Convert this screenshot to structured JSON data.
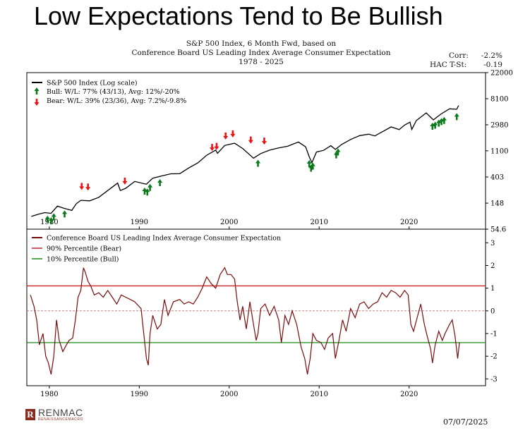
{
  "headline": "Low Expectations Tend to Be Bullish",
  "subtitle": {
    "line1": "S&P 500 Index, 6 Month Fwd, based on",
    "line2": "Conference Board US Leading Index Average Consumer Expectation",
    "line3": "1978 - 2025"
  },
  "stats": {
    "corr_label": "Corr:",
    "corr_value": "-2.2%",
    "hac_label": "HAC T-St:",
    "hac_value": "-0.19"
  },
  "date": "07/07/2025",
  "logo": {
    "name": "RENMAC",
    "sub": "RENAISSANCEMACRO",
    "mark": "R"
  },
  "colors": {
    "spx": "#000000",
    "bull": "#0a7a1a",
    "bear": "#ee1111",
    "expect": "#7a0c0c",
    "p90": "#cc2222",
    "p10": "#1a8a1a"
  },
  "chart_data": [
    {
      "type": "line",
      "log_scale": true,
      "xlim": [
        1977.5,
        2028.5
      ],
      "ylim": [
        54.6,
        22000
      ],
      "x_ticks": [
        "1980",
        "1990",
        "2000",
        "2010",
        "2020"
      ],
      "x_tick_values": [
        1980,
        1990,
        2000,
        2010,
        2020
      ],
      "y_ticks": [
        "54.6",
        "148",
        "403",
        "1100",
        "2980",
        "8100",
        "22000"
      ],
      "y_tick_values": [
        54.6,
        148,
        403,
        1100,
        2980,
        8100,
        22000
      ],
      "legend": {
        "spx": "S&P 500 Index (Log scale)",
        "bull": "Bull:  W/L: 77% (43/13), Avg: 12%/-20%",
        "bear": "Bear:  W/L: 39% (23/36), Avg: 7.2%/-9.8%"
      },
      "series": [
        {
          "name": "S&P 500 Index (Log scale)",
          "points": [
            [
              1978.0,
              89
            ],
            [
              1978.8,
              97
            ],
            [
              1979.5,
              103
            ],
            [
              1980.2,
              100
            ],
            [
              1980.9,
              132
            ],
            [
              1981.6,
              122
            ],
            [
              1982.5,
              112
            ],
            [
              1983.0,
              145
            ],
            [
              1983.5,
              165
            ],
            [
              1984.5,
              162
            ],
            [
              1985.5,
              185
            ],
            [
              1986.5,
              240
            ],
            [
              1987.6,
              320
            ],
            [
              1987.9,
              240
            ],
            [
              1988.5,
              262
            ],
            [
              1989.5,
              340
            ],
            [
              1990.6,
              310
            ],
            [
              1990.8,
              306
            ],
            [
              1991.5,
              385
            ],
            [
              1992.5,
              420
            ],
            [
              1993.5,
              455
            ],
            [
              1994.5,
              458
            ],
            [
              1995.5,
              570
            ],
            [
              1996.5,
              690
            ],
            [
              1997.5,
              930
            ],
            [
              1998.5,
              1130
            ],
            [
              1998.7,
              1000
            ],
            [
              1999.5,
              1350
            ],
            [
              2000.6,
              1470
            ],
            [
              2001.5,
              1200
            ],
            [
              2002.7,
              830
            ],
            [
              2003.5,
              990
            ],
            [
              2004.5,
              1130
            ],
            [
              2005.5,
              1230
            ],
            [
              2006.5,
              1310
            ],
            [
              2007.7,
              1540
            ],
            [
              2008.5,
              1280
            ],
            [
              2008.9,
              870
            ],
            [
              2009.2,
              700
            ],
            [
              2009.7,
              1050
            ],
            [
              2010.5,
              1120
            ],
            [
              2011.3,
              1340
            ],
            [
              2011.8,
              1160
            ],
            [
              2012.5,
              1400
            ],
            [
              2013.5,
              1700
            ],
            [
              2014.5,
              1970
            ],
            [
              2015.5,
              2080
            ],
            [
              2016.2,
              1950
            ],
            [
              2017.0,
              2270
            ],
            [
              2018.0,
              2750
            ],
            [
              2018.9,
              2480
            ],
            [
              2019.5,
              2950
            ],
            [
              2020.1,
              3300
            ],
            [
              2020.3,
              2500
            ],
            [
              2020.8,
              3500
            ],
            [
              2021.9,
              4700
            ],
            [
              2022.7,
              3600
            ],
            [
              2023.5,
              4450
            ],
            [
              2024.5,
              5500
            ],
            [
              2025.3,
              5400
            ],
            [
              2025.5,
              6250
            ]
          ]
        },
        {
          "name": "Bull",
          "points": [
            [
              1979.8,
              102
            ],
            [
              1980.2,
              96
            ],
            [
              1980.5,
              112
            ],
            [
              1981.7,
              125
            ],
            [
              1990.6,
              300
            ],
            [
              1990.9,
              290
            ],
            [
              1991.2,
              345
            ],
            [
              1992.3,
              415
            ],
            [
              2003.2,
              870
            ],
            [
              2008.9,
              860
            ],
            [
              2009.1,
              720
            ],
            [
              2009.3,
              780
            ],
            [
              2011.9,
              1200
            ],
            [
              2012.1,
              1340
            ],
            [
              2022.6,
              3600
            ],
            [
              2022.9,
              3750
            ],
            [
              2023.3,
              4050
            ],
            [
              2023.6,
              4300
            ],
            [
              2023.9,
              4500
            ],
            [
              2025.3,
              5200
            ]
          ]
        },
        {
          "name": "Bear",
          "points": [
            [
              1983.6,
              220
            ],
            [
              1984.3,
              215
            ],
            [
              1988.4,
              270
            ],
            [
              1998.1,
              980
            ],
            [
              1998.6,
              1020
            ],
            [
              1999.6,
              1520
            ],
            [
              2000.4,
              1650
            ],
            [
              2002.4,
              1300
            ],
            [
              2003.9,
              1250
            ]
          ]
        }
      ]
    },
    {
      "type": "line",
      "xlim": [
        1977.5,
        2028.5
      ],
      "ylim": [
        -3.3,
        3.6
      ],
      "x_ticks": [
        "1980",
        "1990",
        "2000",
        "2010",
        "2020"
      ],
      "x_tick_values": [
        1980,
        1990,
        2000,
        2010,
        2020
      ],
      "y_ticks": [
        "-3",
        "-2",
        "-1",
        "0",
        "1",
        "2",
        "3"
      ],
      "y_tick_values": [
        -3,
        -2,
        -1,
        0,
        1,
        2,
        3
      ],
      "legend": {
        "expect": "Conference Board US Leading Index Average Consumer Expectation",
        "p90": "90% Percentile (Bear)",
        "p10": "10% Percentile (Bull)"
      },
      "percentile_90": 1.1,
      "percentile_10": -1.4,
      "zero_line": 0,
      "series": [
        {
          "name": "Conference Board US Leading Index Average Consumer Expectation",
          "points": [
            [
              1977.9,
              0.7
            ],
            [
              1978.3,
              0.2
            ],
            [
              1978.6,
              -0.4
            ],
            [
              1978.9,
              -1.5
            ],
            [
              1979.3,
              -1.0
            ],
            [
              1979.6,
              -2.0
            ],
            [
              1979.9,
              -2.3
            ],
            [
              1980.2,
              -2.8
            ],
            [
              1980.5,
              -2.0
            ],
            [
              1980.8,
              -0.4
            ],
            [
              1981.1,
              -1.3
            ],
            [
              1981.5,
              -1.8
            ],
            [
              1981.9,
              -1.5
            ],
            [
              1982.2,
              -1.3
            ],
            [
              1982.6,
              -1.2
            ],
            [
              1982.9,
              -0.4
            ],
            [
              1983.2,
              0.6
            ],
            [
              1983.5,
              0.9
            ],
            [
              1983.8,
              1.9
            ],
            [
              1984.0,
              1.7
            ],
            [
              1984.3,
              1.3
            ],
            [
              1984.6,
              1.1
            ],
            [
              1985.0,
              0.7
            ],
            [
              1985.5,
              0.8
            ],
            [
              1986.0,
              0.6
            ],
            [
              1986.5,
              0.9
            ],
            [
              1987.0,
              0.6
            ],
            [
              1987.5,
              0.3
            ],
            [
              1988.0,
              0.7
            ],
            [
              1988.5,
              0.6
            ],
            [
              1989.0,
              0.5
            ],
            [
              1989.5,
              0.4
            ],
            [
              1990.2,
              0.1
            ],
            [
              1990.5,
              -1.0
            ],
            [
              1990.8,
              -2.1
            ],
            [
              1991.0,
              -2.4
            ],
            [
              1991.2,
              -1.0
            ],
            [
              1991.5,
              -0.2
            ],
            [
              1992.0,
              -0.8
            ],
            [
              1992.4,
              -0.6
            ],
            [
              1992.8,
              0.5
            ],
            [
              1993.2,
              -0.2
            ],
            [
              1993.8,
              0.4
            ],
            [
              1994.5,
              0.5
            ],
            [
              1995.0,
              0.3
            ],
            [
              1995.5,
              0.4
            ],
            [
              1996.0,
              0.3
            ],
            [
              1996.5,
              0.6
            ],
            [
              1997.0,
              1.0
            ],
            [
              1997.5,
              1.5
            ],
            [
              1998.0,
              1.2
            ],
            [
              1998.5,
              1.0
            ],
            [
              1999.0,
              1.6
            ],
            [
              1999.5,
              1.9
            ],
            [
              1999.8,
              1.6
            ],
            [
              2000.2,
              1.6
            ],
            [
              2000.6,
              1.4
            ],
            [
              2000.9,
              0.4
            ],
            [
              2001.2,
              -0.4
            ],
            [
              2001.5,
              0.2
            ],
            [
              2001.9,
              -0.8
            ],
            [
              2002.3,
              0.4
            ],
            [
              2002.7,
              -0.6
            ],
            [
              2003.0,
              -1.3
            ],
            [
              2003.2,
              -1.0
            ],
            [
              2003.5,
              0.1
            ],
            [
              2004.0,
              0.3
            ],
            [
              2004.5,
              -0.2
            ],
            [
              2005.0,
              0.2
            ],
            [
              2005.5,
              -0.4
            ],
            [
              2005.8,
              -1.4
            ],
            [
              2006.2,
              -0.2
            ],
            [
              2006.6,
              -0.6
            ],
            [
              2007.0,
              0.0
            ],
            [
              2007.5,
              -0.6
            ],
            [
              2008.0,
              -1.6
            ],
            [
              2008.4,
              -2.1
            ],
            [
              2008.7,
              -2.8
            ],
            [
              2009.0,
              -2.1
            ],
            [
              2009.3,
              -1.0
            ],
            [
              2009.7,
              -1.3
            ],
            [
              2010.2,
              -1.4
            ],
            [
              2010.6,
              -1.7
            ],
            [
              2011.0,
              -1.2
            ],
            [
              2011.5,
              -1.0
            ],
            [
              2011.8,
              -2.1
            ],
            [
              2012.2,
              -1.3
            ],
            [
              2012.6,
              -0.4
            ],
            [
              2013.0,
              -0.9
            ],
            [
              2013.5,
              0.1
            ],
            [
              2014.0,
              -0.3
            ],
            [
              2014.5,
              0.3
            ],
            [
              2015.0,
              0.4
            ],
            [
              2015.5,
              0.1
            ],
            [
              2016.0,
              0.3
            ],
            [
              2016.5,
              0.4
            ],
            [
              2017.0,
              0.8
            ],
            [
              2017.5,
              0.6
            ],
            [
              2018.0,
              0.9
            ],
            [
              2018.5,
              0.8
            ],
            [
              2019.0,
              0.6
            ],
            [
              2019.5,
              0.9
            ],
            [
              2019.9,
              0.7
            ],
            [
              2020.2,
              -0.6
            ],
            [
              2020.5,
              -0.9
            ],
            [
              2020.9,
              -0.3
            ],
            [
              2021.3,
              0.3
            ],
            [
              2021.7,
              -0.6
            ],
            [
              2022.0,
              -1.1
            ],
            [
              2022.4,
              -1.7
            ],
            [
              2022.6,
              -2.3
            ],
            [
              2022.9,
              -1.5
            ],
            [
              2023.3,
              -0.9
            ],
            [
              2023.7,
              -1.3
            ],
            [
              2024.0,
              -1.0
            ],
            [
              2024.5,
              -0.6
            ],
            [
              2024.8,
              -0.4
            ],
            [
              2025.1,
              -1.1
            ],
            [
              2025.4,
              -2.1
            ],
            [
              2025.6,
              -1.4
            ]
          ]
        }
      ]
    }
  ]
}
